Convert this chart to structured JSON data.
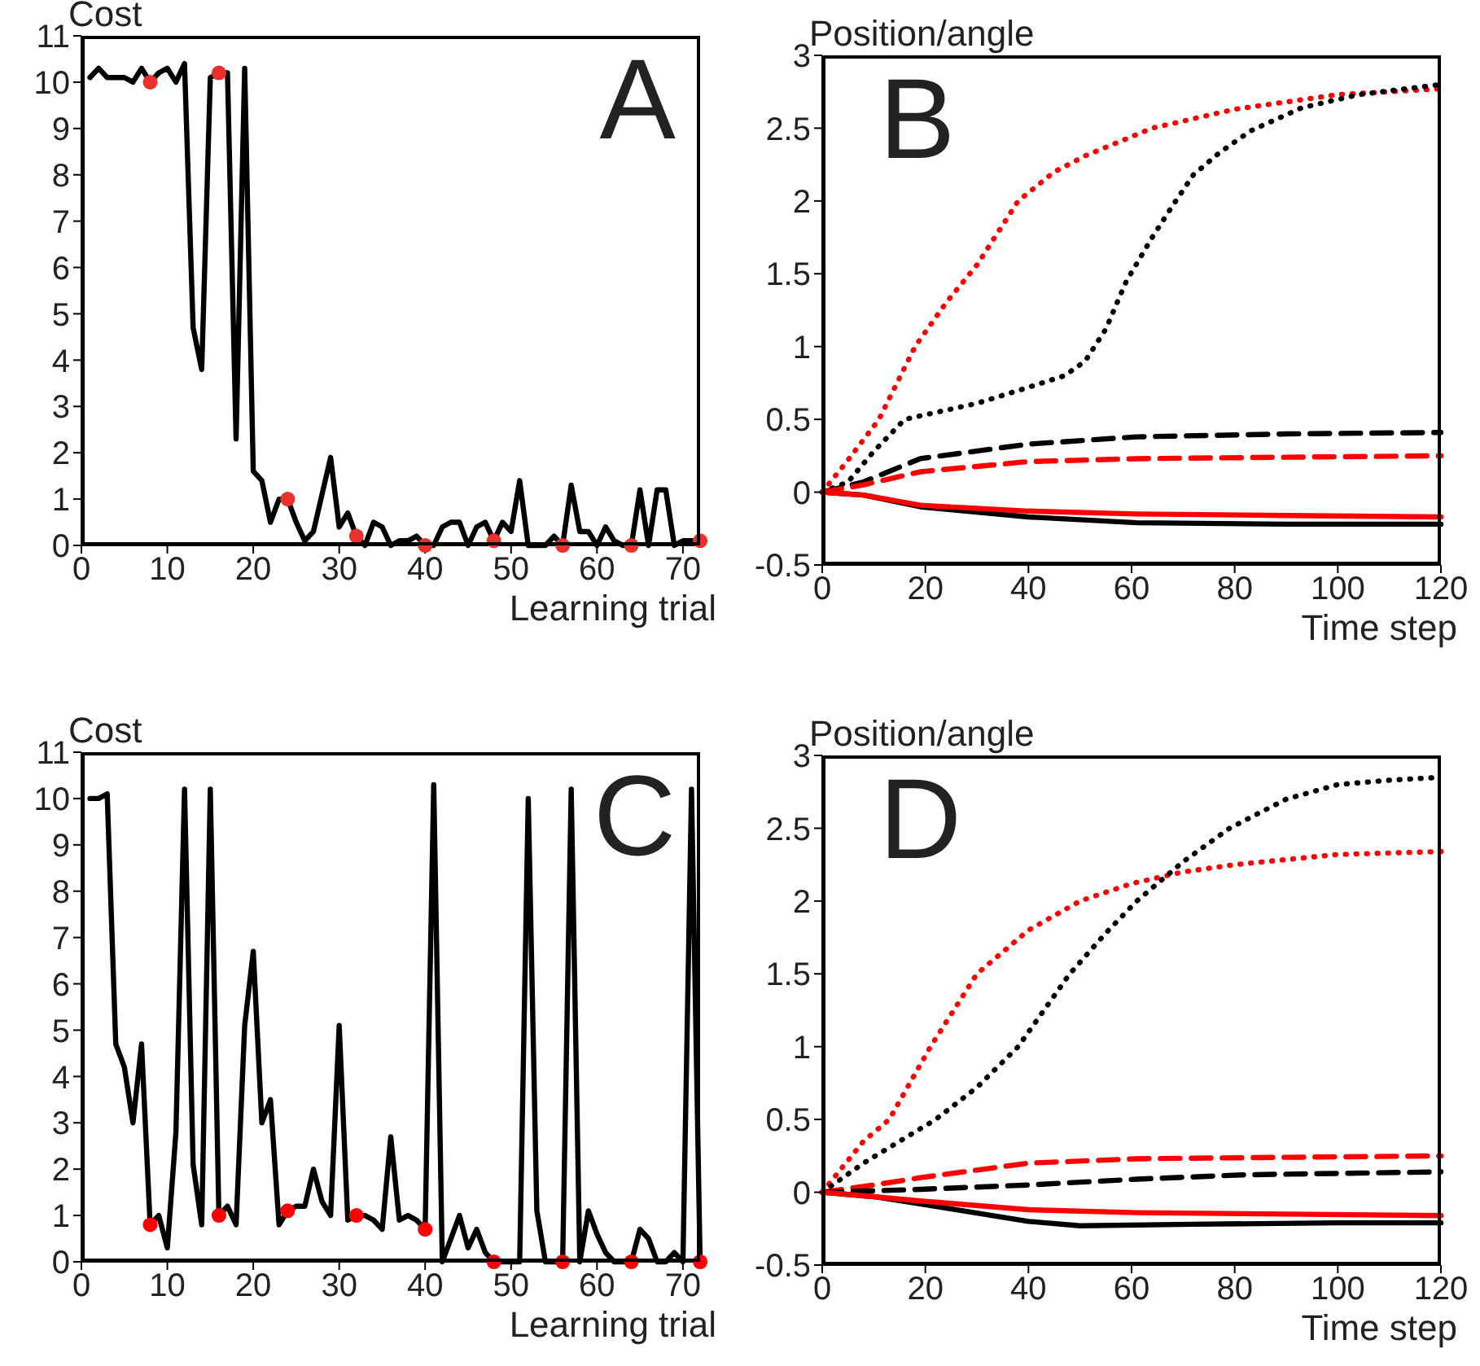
{
  "chart_data": [
    {
      "type": "line",
      "ylabel": "Cost",
      "xlabel": "Learning trial",
      "annotations": [
        "A"
      ],
      "xlim": [
        0,
        72
      ],
      "xticks": [
        0,
        10,
        20,
        30,
        40,
        50,
        60,
        70
      ],
      "ylim": [
        0,
        11
      ],
      "yticks": [
        0,
        1,
        2,
        3,
        4,
        5,
        6,
        7,
        8,
        9,
        10,
        11
      ],
      "series": [
        {
          "color": "#000000",
          "line_style": "solid",
          "x": [
            1,
            2,
            3,
            4,
            5,
            6,
            7,
            8,
            9,
            10,
            11,
            12,
            13,
            14,
            15,
            16,
            17,
            18,
            19,
            20,
            21,
            22,
            23,
            24,
            25,
            26,
            27,
            28,
            29,
            30,
            31,
            32,
            33,
            34,
            35,
            36,
            37,
            38,
            39,
            40,
            41,
            42,
            43,
            44,
            45,
            46,
            47,
            48,
            49,
            50,
            51,
            52,
            53,
            54,
            55,
            56,
            57,
            58,
            59,
            60,
            61,
            62,
            63,
            64,
            65,
            66,
            67,
            68,
            69,
            70,
            71,
            72
          ],
          "values": [
            10.1,
            10.3,
            10.1,
            10.1,
            10.1,
            10.0,
            10.3,
            10.0,
            10.2,
            10.3,
            10.0,
            10.4,
            4.7,
            3.8,
            10.1,
            10.2,
            10.2,
            2.3,
            10.3,
            1.6,
            1.4,
            0.5,
            1.0,
            1.0,
            0.5,
            0.1,
            0.3,
            1.1,
            1.9,
            0.4,
            0.7,
            0.2,
            0.0,
            0.5,
            0.4,
            0.0,
            0.1,
            0.1,
            0.2,
            0.0,
            0.0,
            0.4,
            0.5,
            0.5,
            0.0,
            0.4,
            0.5,
            0.1,
            0.5,
            0.3,
            1.4,
            0.0,
            0.0,
            0.0,
            0.2,
            0.0,
            1.3,
            0.3,
            0.3,
            0.0,
            0.4,
            0.1,
            0.0,
            0.0,
            1.2,
            0.0,
            1.2,
            1.2,
            0.0,
            0.1,
            0.1,
            0.1
          ]
        },
        {
          "type": "scatter",
          "color": "#e8312a",
          "marker": "circle",
          "x": [
            8,
            16,
            24,
            32,
            40,
            48,
            56,
            64,
            72
          ],
          "values": [
            10.0,
            10.2,
            1.0,
            0.2,
            0.0,
            0.1,
            0.0,
            0.0,
            0.1
          ]
        }
      ]
    },
    {
      "type": "line",
      "ylabel": "Position/angle",
      "xlabel": "Time step",
      "annotations": [
        "B"
      ],
      "xlim": [
        0,
        120
      ],
      "xticks": [
        0,
        20,
        40,
        60,
        80,
        100,
        120
      ],
      "ylim": [
        -0.5,
        3
      ],
      "yticks": [
        -0.5,
        0,
        0.5,
        1,
        1.5,
        2,
        2.5,
        3
      ],
      "series": [
        {
          "color": "#ff0000",
          "line_style": "dotted",
          "x": [
            0,
            5,
            11,
            18,
            24,
            30,
            38,
            45,
            51,
            64,
            80,
            100,
            120
          ],
          "values": [
            0,
            0.22,
            0.5,
            1.0,
            1.3,
            1.56,
            2.0,
            2.2,
            2.31,
            2.5,
            2.63,
            2.73,
            2.77
          ]
        },
        {
          "color": "#000000",
          "line_style": "dotted",
          "x": [
            0,
            5,
            10,
            16,
            30,
            40,
            47,
            51,
            55,
            59,
            64,
            68,
            72,
            77,
            83,
            93,
            104,
            120
          ],
          "values": [
            0,
            0.07,
            0.28,
            0.5,
            0.61,
            0.72,
            0.8,
            0.9,
            1.12,
            1.45,
            1.75,
            1.97,
            2.18,
            2.33,
            2.48,
            2.64,
            2.73,
            2.8
          ]
        },
        {
          "color": "#000000",
          "line_style": "dashed",
          "x": [
            0,
            8,
            19,
            40,
            61,
            90,
            120
          ],
          "values": [
            0,
            0.07,
            0.23,
            0.33,
            0.38,
            0.4,
            0.41
          ]
        },
        {
          "color": "#ff0000",
          "line_style": "dashed",
          "x": [
            0,
            8,
            19,
            40,
            61,
            90,
            120
          ],
          "values": [
            0,
            0.05,
            0.14,
            0.21,
            0.23,
            0.24,
            0.25
          ]
        },
        {
          "color": "#000000",
          "line_style": "solid",
          "x": [
            0,
            8,
            19,
            40,
            61,
            90,
            120
          ],
          "values": [
            0,
            -0.02,
            -0.1,
            -0.17,
            -0.21,
            -0.22,
            -0.22
          ]
        },
        {
          "color": "#ff0000",
          "line_style": "solid",
          "x": [
            0,
            8,
            19,
            40,
            61,
            90,
            120
          ],
          "values": [
            0,
            -0.02,
            -0.09,
            -0.13,
            -0.15,
            -0.16,
            -0.17
          ]
        }
      ]
    },
    {
      "type": "line",
      "ylabel": "Cost",
      "xlabel": "Learning trial",
      "annotations": [
        "C"
      ],
      "xlim": [
        0,
        72
      ],
      "xticks": [
        0,
        10,
        20,
        30,
        40,
        50,
        60,
        70
      ],
      "ylim": [
        0,
        11
      ],
      "yticks": [
        0,
        1,
        2,
        3,
        4,
        5,
        6,
        7,
        8,
        9,
        10,
        11
      ],
      "series": [
        {
          "color": "#000000",
          "line_style": "solid",
          "x": [
            1,
            2,
            3,
            4,
            5,
            6,
            7,
            8,
            9,
            10,
            11,
            12,
            13,
            14,
            15,
            16,
            17,
            18,
            19,
            20,
            21,
            22,
            23,
            24,
            25,
            26,
            27,
            28,
            29,
            30,
            31,
            32,
            33,
            34,
            35,
            36,
            37,
            38,
            39,
            40,
            41,
            42,
            43,
            44,
            45,
            46,
            47,
            48,
            49,
            50,
            51,
            52,
            53,
            54,
            55,
            56,
            57,
            58,
            59,
            60,
            61,
            62,
            63,
            64,
            65,
            66,
            67,
            68,
            69,
            70,
            71,
            72
          ],
          "values": [
            10.0,
            10.0,
            10.1,
            4.7,
            4.2,
            3.0,
            4.7,
            0.8,
            1.0,
            0.3,
            2.8,
            10.2,
            2.1,
            0.8,
            10.2,
            1.0,
            1.2,
            0.8,
            5.1,
            6.7,
            3.0,
            3.5,
            0.8,
            1.1,
            1.2,
            1.2,
            2.0,
            1.3,
            1.0,
            5.1,
            0.9,
            1.0,
            1.0,
            0.9,
            0.7,
            2.7,
            0.9,
            1.0,
            0.9,
            0.7,
            10.3,
            0.0,
            0.5,
            1.0,
            0.3,
            0.7,
            0.2,
            0.0,
            0.0,
            0.0,
            0.0,
            10.0,
            1.1,
            0.0,
            0.0,
            0.0,
            10.2,
            0.0,
            1.1,
            0.6,
            0.2,
            0.0,
            0.0,
            0.0,
            0.7,
            0.5,
            0.0,
            0.0,
            0.2,
            0.0,
            10.2,
            0.0
          ]
        },
        {
          "type": "scatter",
          "color": "#ff0000",
          "marker": "circle",
          "x": [
            8,
            16,
            24,
            32,
            40,
            48,
            56,
            64,
            72
          ],
          "values": [
            0.8,
            1.0,
            1.1,
            1.0,
            0.7,
            0.0,
            0.0,
            0.0,
            0.0
          ]
        }
      ]
    },
    {
      "type": "line",
      "ylabel": "Position/angle",
      "xlabel": "Time step",
      "annotations": [
        "D"
      ],
      "xlim": [
        0,
        120
      ],
      "xticks": [
        0,
        20,
        40,
        60,
        80,
        100,
        120
      ],
      "ylim": [
        -0.5,
        3
      ],
      "yticks": [
        -0.5,
        0,
        0.5,
        1,
        1.5,
        2,
        2.5,
        3
      ],
      "series": [
        {
          "color": "#ff0000",
          "line_style": "dotted",
          "x": [
            0,
            8,
            13,
            21,
            30,
            40,
            50,
            60,
            70,
            80,
            100,
            120
          ],
          "values": [
            0,
            0.35,
            0.5,
            1.0,
            1.5,
            1.8,
            2.0,
            2.12,
            2.2,
            2.25,
            2.32,
            2.34
          ]
        },
        {
          "color": "#000000",
          "line_style": "dotted",
          "x": [
            0,
            8,
            22,
            30,
            38,
            48,
            55,
            61,
            70,
            79,
            90,
            100,
            110,
            120
          ],
          "values": [
            0,
            0.2,
            0.5,
            0.72,
            1.0,
            1.5,
            1.78,
            2.0,
            2.27,
            2.5,
            2.7,
            2.8,
            2.83,
            2.85
          ]
        },
        {
          "color": "#ff0000",
          "line_style": "dashed",
          "x": [
            0,
            10,
            19,
            40,
            61,
            90,
            120
          ],
          "values": [
            0,
            0.05,
            0.1,
            0.2,
            0.23,
            0.24,
            0.25
          ]
        },
        {
          "color": "#000000",
          "line_style": "dashed",
          "x": [
            0,
            10,
            19,
            40,
            61,
            82,
            120
          ],
          "values": [
            0,
            0.01,
            0.02,
            0.05,
            0.09,
            0.12,
            0.14
          ]
        },
        {
          "color": "#000000",
          "line_style": "solid",
          "x": [
            0,
            10,
            19,
            40,
            50,
            72,
            100,
            120
          ],
          "values": [
            0,
            -0.03,
            -0.08,
            -0.2,
            -0.23,
            -0.22,
            -0.21,
            -0.21
          ]
        },
        {
          "color": "#ff0000",
          "line_style": "solid",
          "x": [
            0,
            10,
            19,
            40,
            61,
            90,
            120
          ],
          "values": [
            0,
            -0.03,
            -0.06,
            -0.12,
            -0.14,
            -0.15,
            -0.16
          ]
        }
      ]
    }
  ]
}
